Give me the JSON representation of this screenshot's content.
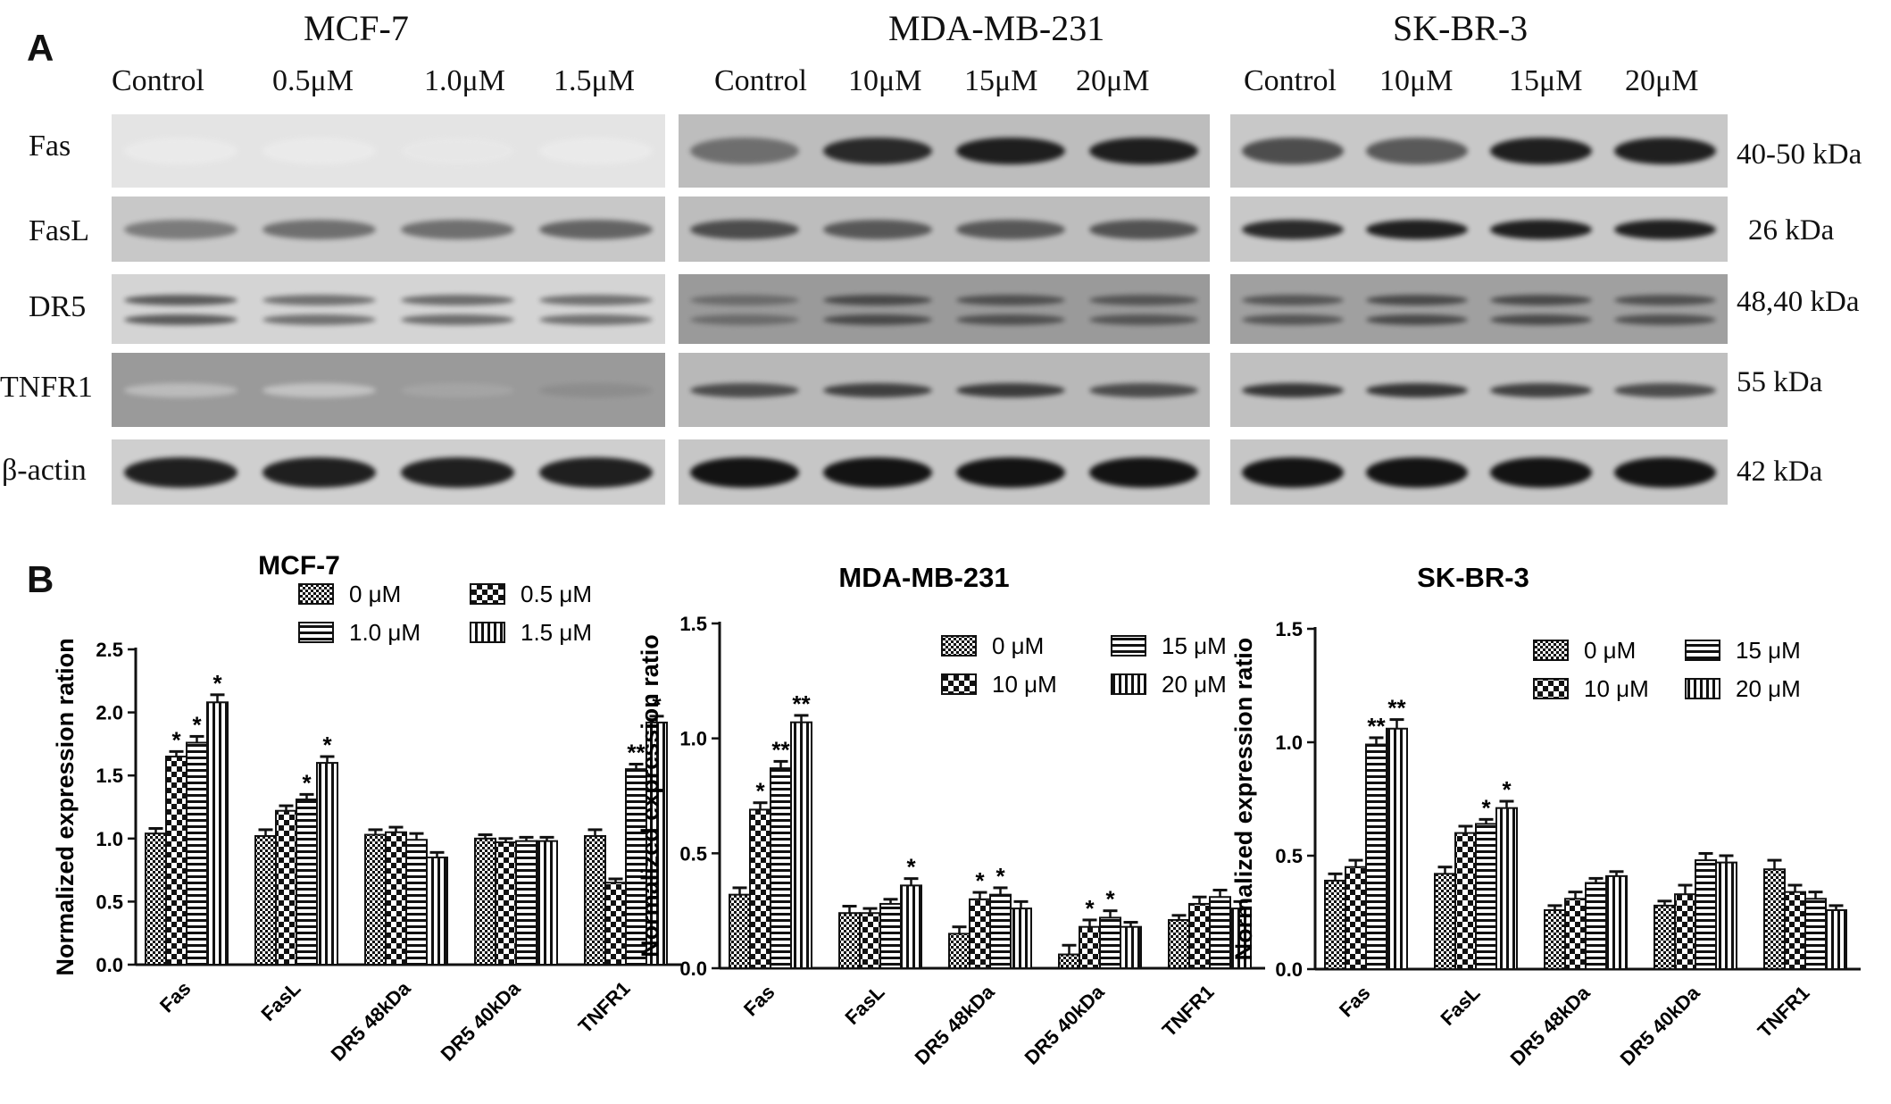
{
  "panel_a": {
    "letter": "A",
    "blots": [
      {
        "title": "MCF-7",
        "lanes": [
          "Control",
          "0.5μM",
          "1.0μM",
          "1.5μM"
        ],
        "row_intensity": [
          [
            0.08,
            0.08,
            0.09,
            0.08
          ],
          [
            0.55,
            0.6,
            0.6,
            0.65
          ],
          [
            0.7,
            0.6,
            0.62,
            0.6
          ],
          [
            0.25,
            0.22,
            0.35,
            0.45
          ],
          [
            0.95,
            0.95,
            0.95,
            0.95
          ]
        ]
      },
      {
        "title": "MDA-MB-231",
        "lanes": [
          "Control",
          "10μM",
          "15μM",
          "20μM"
        ],
        "row_intensity": [
          [
            0.6,
            0.9,
            0.95,
            0.95
          ],
          [
            0.75,
            0.7,
            0.7,
            0.72
          ],
          [
            0.6,
            0.75,
            0.72,
            0.7
          ],
          [
            0.75,
            0.8,
            0.82,
            0.75
          ],
          [
            1.0,
            1.0,
            1.0,
            1.0
          ]
        ]
      },
      {
        "title": "SK-BR-3",
        "lanes": [
          "Control",
          "10μM",
          "15μM",
          "20μM"
        ],
        "row_intensity": [
          [
            0.75,
            0.7,
            0.95,
            0.95
          ],
          [
            0.9,
            0.95,
            0.95,
            0.95
          ],
          [
            0.7,
            0.75,
            0.75,
            0.72
          ],
          [
            0.85,
            0.85,
            0.8,
            0.75
          ],
          [
            1.0,
            1.0,
            1.0,
            1.0
          ]
        ]
      }
    ],
    "rows": [
      "Fas",
      "FasL",
      "DR5",
      "TNFR1",
      "β-actin"
    ],
    "kda": [
      "40-50 kDa",
      "26 kDa",
      "48,40 kDa",
      "55 kDa",
      "42 kDa"
    ]
  },
  "panel_b": {
    "letter": "B"
  },
  "chart_data": [
    {
      "type": "bar",
      "title": "MCF-7",
      "ylabel": "Normalized expression ration",
      "ylim": [
        0,
        2.5
      ],
      "yticks": [
        "0.0",
        "0.5",
        "1.0",
        "1.5",
        "2.0",
        "2.5"
      ],
      "categories": [
        "Fas",
        "FasL",
        "DR5 48kDa",
        "DR5 40kDa",
        "TNFR1"
      ],
      "series": [
        {
          "name": "0 μM",
          "values": [
            1.04,
            1.02,
            1.03,
            1.0,
            1.02
          ],
          "errors": [
            0.04,
            0.05,
            0.04,
            0.03,
            0.05
          ],
          "sig": [
            "",
            "",
            "",
            "",
            ""
          ]
        },
        {
          "name": "0.5 μM",
          "values": [
            1.65,
            1.22,
            1.05,
            0.97,
            0.65
          ],
          "errors": [
            0.04,
            0.04,
            0.04,
            0.03,
            0.03
          ],
          "sig": [
            "*",
            "",
            "",
            "",
            ""
          ]
        },
        {
          "name": "1.0 μM",
          "values": [
            1.76,
            1.31,
            0.99,
            0.98,
            1.55
          ],
          "errors": [
            0.05,
            0.04,
            0.05,
            0.03,
            0.04
          ],
          "sig": [
            "*",
            "*",
            "",
            "",
            "**"
          ]
        },
        {
          "name": "1.5 μM",
          "values": [
            2.08,
            1.6,
            0.85,
            0.98,
            1.92
          ],
          "errors": [
            0.06,
            0.05,
            0.04,
            0.03,
            0.05
          ],
          "sig": [
            "*",
            "*",
            "",
            "",
            "*"
          ]
        }
      ]
    },
    {
      "type": "bar",
      "title": "MDA-MB-231",
      "ylabel": "Normalized expression ratio",
      "ylim": [
        0,
        1.5
      ],
      "yticks": [
        "0.0",
        "0.5",
        "1.0",
        "1.5"
      ],
      "categories": [
        "Fas",
        "FasL",
        "DR5 48kDa",
        "DR5 40kDa",
        "TNFR1"
      ],
      "series": [
        {
          "name": "0 μM",
          "values": [
            0.32,
            0.24,
            0.15,
            0.06,
            0.21
          ],
          "errors": [
            0.03,
            0.03,
            0.03,
            0.04,
            0.02
          ],
          "sig": [
            "",
            "",
            "",
            "",
            ""
          ]
        },
        {
          "name": "10 μM",
          "values": [
            0.69,
            0.24,
            0.3,
            0.18,
            0.28
          ],
          "errors": [
            0.03,
            0.02,
            0.03,
            0.03,
            0.03
          ],
          "sig": [
            "*",
            "",
            "*",
            "*",
            ""
          ]
        },
        {
          "name": "15 μM",
          "values": [
            0.87,
            0.28,
            0.32,
            0.22,
            0.31
          ],
          "errors": [
            0.03,
            0.02,
            0.03,
            0.03,
            0.03
          ],
          "sig": [
            "**",
            "",
            "*",
            "*",
            ""
          ]
        },
        {
          "name": "20 μM",
          "values": [
            1.07,
            0.36,
            0.26,
            0.18,
            0.26
          ],
          "errors": [
            0.03,
            0.03,
            0.03,
            0.02,
            0.03
          ],
          "sig": [
            "**",
            "*",
            "",
            "",
            ""
          ]
        }
      ]
    },
    {
      "type": "bar",
      "title": "SK-BR-3",
      "ylabel": "Normalized expression ratio",
      "ylim": [
        0,
        1.5
      ],
      "yticks": [
        "0.0",
        "0.5",
        "1.0",
        "1.5"
      ],
      "categories": [
        "Fas",
        "FasL",
        "DR5 48kDa",
        "DR5 40kDa",
        "TNFR1"
      ],
      "series": [
        {
          "name": "0 μM",
          "values": [
            0.39,
            0.42,
            0.26,
            0.28,
            0.44
          ],
          "errors": [
            0.03,
            0.03,
            0.02,
            0.02,
            0.04
          ],
          "sig": [
            "",
            "",
            "",
            "",
            ""
          ]
        },
        {
          "name": "10 μM",
          "values": [
            0.45,
            0.6,
            0.31,
            0.33,
            0.34
          ],
          "errors": [
            0.03,
            0.03,
            0.03,
            0.04,
            0.03
          ],
          "sig": [
            "",
            "",
            "",
            "",
            ""
          ]
        },
        {
          "name": "15 μM",
          "values": [
            0.99,
            0.64,
            0.38,
            0.48,
            0.31
          ],
          "errors": [
            0.03,
            0.02,
            0.02,
            0.03,
            0.03
          ],
          "sig": [
            "**",
            "*",
            "",
            "",
            ""
          ]
        },
        {
          "name": "20 μM",
          "values": [
            1.06,
            0.71,
            0.41,
            0.47,
            0.26
          ],
          "errors": [
            0.04,
            0.03,
            0.02,
            0.03,
            0.02
          ],
          "sig": [
            "**",
            "*",
            "",
            "",
            ""
          ]
        }
      ]
    }
  ]
}
